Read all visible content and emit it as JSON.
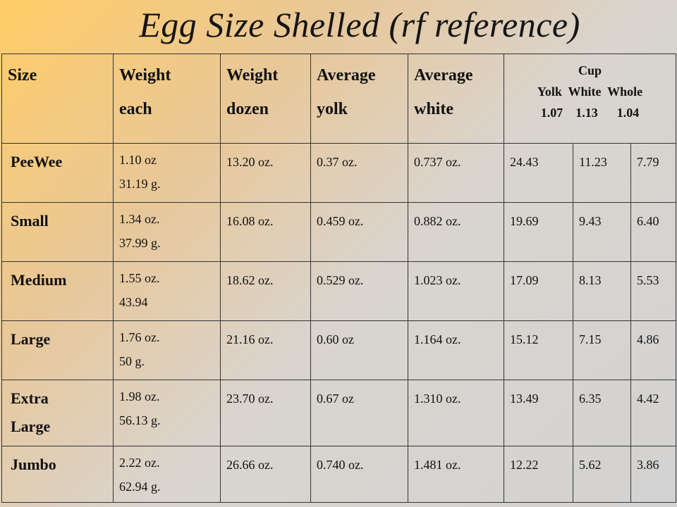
{
  "title": "Egg Size Shelled (rf reference)",
  "headers": {
    "size": "Size",
    "weight_each": [
      "Weight",
      "each"
    ],
    "weight_dozen": [
      "Weight",
      "dozen"
    ],
    "avg_yolk": [
      "Average",
      "yolk"
    ],
    "avg_white": [
      "Average",
      "white"
    ],
    "cup": {
      "label": "Cup",
      "sub": "Yolk  White  Whole",
      "values": "1.07    1.13      1.04"
    }
  },
  "rows": [
    {
      "size": [
        "PeeWee"
      ],
      "each": [
        "1.10 oz",
        "31.19 g."
      ],
      "dozen": "13.20 oz.",
      "yolk": "0.37 oz.",
      "white": "0.737 oz.",
      "cup_yolk": "24.43",
      "cup_white": "11.23",
      "cup_whole": "7.79"
    },
    {
      "size": [
        "Small"
      ],
      "each": [
        "1.34 oz.",
        "37.99 g."
      ],
      "dozen": "16.08 oz.",
      "yolk": "0.459 oz.",
      "white": "0.882 oz.",
      "cup_yolk": "19.69",
      "cup_white": "9.43",
      "cup_whole": "6.40"
    },
    {
      "size": [
        "Medium"
      ],
      "each": [
        "1.55 oz.",
        "43.94"
      ],
      "dozen": "18.62 oz.",
      "yolk": "0.529 oz.",
      "white": "1.023 oz.",
      "cup_yolk": "17.09",
      "cup_white": "8.13",
      "cup_whole": "5.53"
    },
    {
      "size": [
        "Large"
      ],
      "each": [
        "1.76 oz.",
        "50 g."
      ],
      "dozen": "21.16 oz.",
      "yolk": "0.60 oz",
      "white": "1.164 oz.",
      "cup_yolk": "15.12",
      "cup_white": "7.15",
      "cup_whole": "4.86"
    },
    {
      "size": [
        "Extra",
        "Large"
      ],
      "each": [
        "1.98 oz.",
        "56.13 g."
      ],
      "dozen": "23.70 oz.",
      "yolk": "0.67 oz",
      "white": "1.310 oz.",
      "cup_yolk": "13.49",
      "cup_white": "6.35",
      "cup_whole": "4.42"
    },
    {
      "size": [
        "Jumbo"
      ],
      "each": [
        "2.22 oz.",
        "62.94 g."
      ],
      "dozen": "26.66 oz.",
      "yolk": "0.740 oz.",
      "white": "1.481 oz.",
      "cup_yolk": "12.22",
      "cup_white": "5.62",
      "cup_whole": "3.86"
    }
  ]
}
